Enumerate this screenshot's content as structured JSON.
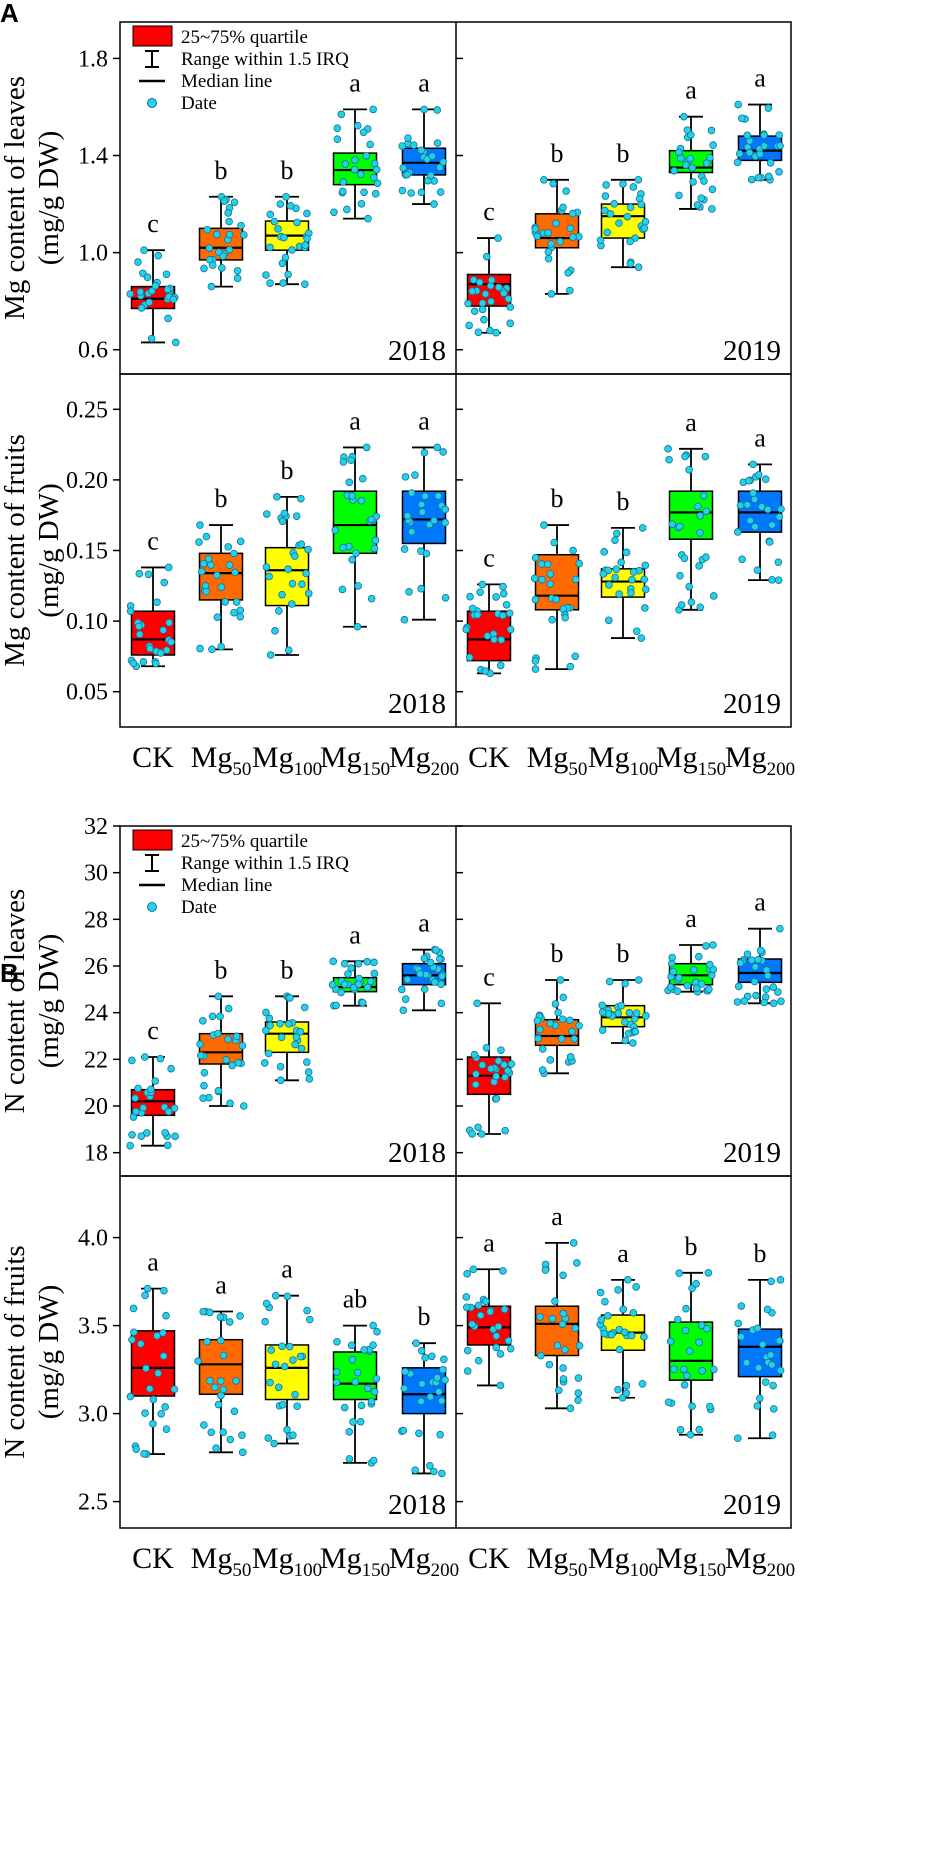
{
  "panels": [
    {
      "letter": "A"
    },
    {
      "letter": "B"
    }
  ],
  "legend": {
    "items": [
      {
        "label": "25~75% quartile",
        "kind": "box",
        "color": "#ff0000"
      },
      {
        "label": "Range within 1.5 IRQ",
        "kind": "whisker"
      },
      {
        "label": "Median line",
        "kind": "line"
      },
      {
        "label": "Date",
        "kind": "dot",
        "color": "#22d3e6"
      }
    ]
  },
  "categories": [
    {
      "main": "CK",
      "sub": ""
    },
    {
      "main": "Mg",
      "sub": "50"
    },
    {
      "main": "Mg",
      "sub": "100"
    },
    {
      "main": "Mg",
      "sub": "150"
    },
    {
      "main": "Mg",
      "sub": "200"
    }
  ],
  "colors": {
    "CK": "#ff0000",
    "Mg50": "#ff6a00",
    "Mg100": "#ffff00",
    "Mg150": "#00ff00",
    "Mg200": "#0077ff",
    "points": "#22d3e6",
    "points_edge": "#1a6f9a"
  },
  "chart_data": [
    {
      "type": "box",
      "panel": "A",
      "ylabel_line1": "Mg content of leaves",
      "ylabel_line2": "(mg/g DW)",
      "ylim": [
        0.5,
        1.95
      ],
      "yticks": [
        0.6,
        1.0,
        1.4,
        1.8
      ],
      "ytick_labels": [
        "0.6",
        "1.0",
        "1.4",
        "1.8"
      ],
      "show_legend": true,
      "show_xlabels": false,
      "subplots": [
        {
          "year": "2018",
          "boxes": [
            {
              "category": "CK",
              "min": 0.63,
              "q1": 0.77,
              "median": 0.81,
              "q3": 0.86,
              "max": 1.01,
              "letter": "c"
            },
            {
              "category": "Mg50",
              "min": 0.86,
              "q1": 0.97,
              "median": 1.02,
              "q3": 1.1,
              "max": 1.23,
              "letter": "b"
            },
            {
              "category": "Mg100",
              "min": 0.87,
              "q1": 1.01,
              "median": 1.07,
              "q3": 1.13,
              "max": 1.23,
              "letter": "b"
            },
            {
              "category": "Mg150",
              "min": 1.14,
              "q1": 1.28,
              "median": 1.34,
              "q3": 1.41,
              "max": 1.59,
              "letter": "a"
            },
            {
              "category": "Mg200",
              "min": 1.2,
              "q1": 1.32,
              "median": 1.37,
              "q3": 1.43,
              "max": 1.59,
              "letter": "a"
            }
          ]
        },
        {
          "year": "2019",
          "boxes": [
            {
              "category": "CK",
              "min": 0.67,
              "q1": 0.78,
              "median": 0.87,
              "q3": 0.91,
              "max": 1.06,
              "letter": "c"
            },
            {
              "category": "Mg50",
              "min": 0.83,
              "q1": 1.02,
              "median": 1.06,
              "q3": 1.16,
              "max": 1.3,
              "letter": "b"
            },
            {
              "category": "Mg100",
              "min": 0.94,
              "q1": 1.06,
              "median": 1.15,
              "q3": 1.2,
              "max": 1.3,
              "letter": "b"
            },
            {
              "category": "Mg150",
              "min": 1.18,
              "q1": 1.33,
              "median": 1.35,
              "q3": 1.42,
              "max": 1.56,
              "letter": "a"
            },
            {
              "category": "Mg200",
              "min": 1.3,
              "q1": 1.38,
              "median": 1.42,
              "q3": 1.48,
              "max": 1.61,
              "letter": "a"
            }
          ]
        }
      ]
    },
    {
      "type": "box",
      "panel": "A",
      "ylabel_line1": "Mg content of fruits",
      "ylabel_line2": "(mg/g DW)",
      "ylim": [
        0.025,
        0.275
      ],
      "yticks": [
        0.05,
        0.1,
        0.15,
        0.2,
        0.25
      ],
      "ytick_labels": [
        "0.05",
        "0.10",
        "0.15",
        "0.20",
        "0.25"
      ],
      "show_legend": false,
      "show_xlabels": true,
      "subplots": [
        {
          "year": "2018",
          "boxes": [
            {
              "category": "CK",
              "min": 0.068,
              "q1": 0.076,
              "median": 0.087,
              "q3": 0.107,
              "max": 0.138,
              "letter": "c"
            },
            {
              "category": "Mg50",
              "min": 0.08,
              "q1": 0.115,
              "median": 0.134,
              "q3": 0.148,
              "max": 0.168,
              "letter": "b"
            },
            {
              "category": "Mg100",
              "min": 0.076,
              "q1": 0.111,
              "median": 0.136,
              "q3": 0.152,
              "max": 0.188,
              "letter": "b"
            },
            {
              "category": "Mg150",
              "min": 0.096,
              "q1": 0.148,
              "median": 0.168,
              "q3": 0.192,
              "max": 0.223,
              "letter": "a"
            },
            {
              "category": "Mg200",
              "min": 0.101,
              "q1": 0.155,
              "median": 0.172,
              "q3": 0.192,
              "max": 0.223,
              "letter": "a"
            }
          ]
        },
        {
          "year": "2019",
          "boxes": [
            {
              "category": "CK",
              "min": 0.063,
              "q1": 0.072,
              "median": 0.087,
              "q3": 0.107,
              "max": 0.126,
              "letter": "c"
            },
            {
              "category": "Mg50",
              "min": 0.066,
              "q1": 0.108,
              "median": 0.118,
              "q3": 0.147,
              "max": 0.168,
              "letter": "b"
            },
            {
              "category": "Mg100",
              "min": 0.088,
              "q1": 0.117,
              "median": 0.128,
              "q3": 0.137,
              "max": 0.166,
              "letter": "b"
            },
            {
              "category": "Mg150",
              "min": 0.108,
              "q1": 0.158,
              "median": 0.177,
              "q3": 0.192,
              "max": 0.222,
              "letter": "a"
            },
            {
              "category": "Mg200",
              "min": 0.129,
              "q1": 0.163,
              "median": 0.177,
              "q3": 0.192,
              "max": 0.211,
              "letter": "a"
            }
          ]
        }
      ]
    },
    {
      "type": "box",
      "panel": "B",
      "ylabel_line1": "N content of leaves",
      "ylabel_line2": "(mg/g DW)",
      "ylim": [
        17,
        32
      ],
      "yticks": [
        18,
        20,
        22,
        24,
        26,
        28,
        30,
        32
      ],
      "ytick_labels": [
        "18",
        "20",
        "22",
        "24",
        "26",
        "28",
        "30",
        "32"
      ],
      "show_legend": true,
      "show_xlabels": false,
      "subplots": [
        {
          "year": "2018",
          "boxes": [
            {
              "category": "CK",
              "min": 18.3,
              "q1": 19.6,
              "median": 20.2,
              "q3": 20.7,
              "max": 22.1,
              "letter": "c"
            },
            {
              "category": "Mg50",
              "min": 20.0,
              "q1": 21.8,
              "median": 22.3,
              "q3": 23.1,
              "max": 24.7,
              "letter": "b"
            },
            {
              "category": "Mg100",
              "min": 21.1,
              "q1": 22.3,
              "median": 23.1,
              "q3": 23.6,
              "max": 24.7,
              "letter": "b"
            },
            {
              "category": "Mg150",
              "min": 24.3,
              "q1": 24.9,
              "median": 25.1,
              "q3": 25.5,
              "max": 26.2,
              "letter": "a"
            },
            {
              "category": "Mg200",
              "min": 24.1,
              "q1": 25.2,
              "median": 25.6,
              "q3": 26.1,
              "max": 26.7,
              "letter": "a"
            }
          ]
        },
        {
          "year": "2019",
          "boxes": [
            {
              "category": "CK",
              "min": 18.8,
              "q1": 20.5,
              "median": 21.3,
              "q3": 22.1,
              "max": 24.4,
              "letter": "c"
            },
            {
              "category": "Mg50",
              "min": 21.4,
              "q1": 22.6,
              "median": 23.0,
              "q3": 23.7,
              "max": 25.4,
              "letter": "b"
            },
            {
              "category": "Mg100",
              "min": 22.7,
              "q1": 23.4,
              "median": 23.8,
              "q3": 24.3,
              "max": 25.4,
              "letter": "b"
            },
            {
              "category": "Mg150",
              "min": 24.9,
              "q1": 25.2,
              "median": 25.6,
              "q3": 26.1,
              "max": 26.9,
              "letter": "a"
            },
            {
              "category": "Mg200",
              "min": 24.4,
              "q1": 25.3,
              "median": 25.7,
              "q3": 26.3,
              "max": 27.6,
              "letter": "a"
            }
          ]
        }
      ]
    },
    {
      "type": "box",
      "panel": "B",
      "ylabel_line1": "N content of fruits",
      "ylabel_line2": "(mg/g DW)",
      "ylim": [
        2.35,
        4.35
      ],
      "yticks": [
        2.5,
        3.0,
        3.5,
        4.0
      ],
      "ytick_labels": [
        "2.5",
        "3.0",
        "3.5",
        "4.0"
      ],
      "show_legend": false,
      "show_xlabels": true,
      "subplots": [
        {
          "year": "2018",
          "boxes": [
            {
              "category": "CK",
              "min": 2.77,
              "q1": 3.1,
              "median": 3.26,
              "q3": 3.47,
              "max": 3.71,
              "letter": "a"
            },
            {
              "category": "Mg50",
              "min": 2.78,
              "q1": 3.11,
              "median": 3.28,
              "q3": 3.42,
              "max": 3.58,
              "letter": "a"
            },
            {
              "category": "Mg100",
              "min": 2.83,
              "q1": 3.08,
              "median": 3.26,
              "q3": 3.39,
              "max": 3.67,
              "letter": "a"
            },
            {
              "category": "Mg150",
              "min": 2.72,
              "q1": 3.08,
              "median": 3.17,
              "q3": 3.35,
              "max": 3.5,
              "letter": "ab"
            },
            {
              "category": "Mg200",
              "min": 2.66,
              "q1": 3.0,
              "median": 3.11,
              "q3": 3.26,
              "max": 3.4,
              "letter": "b"
            }
          ]
        },
        {
          "year": "2019",
          "boxes": [
            {
              "category": "CK",
              "min": 3.16,
              "q1": 3.39,
              "median": 3.49,
              "q3": 3.61,
              "max": 3.82,
              "letter": "a"
            },
            {
              "category": "Mg50",
              "min": 3.03,
              "q1": 3.33,
              "median": 3.51,
              "q3": 3.61,
              "max": 3.97,
              "letter": "a"
            },
            {
              "category": "Mg100",
              "min": 3.09,
              "q1": 3.36,
              "median": 3.46,
              "q3": 3.56,
              "max": 3.76,
              "letter": "a"
            },
            {
              "category": "Mg150",
              "min": 2.88,
              "q1": 3.19,
              "median": 3.3,
              "q3": 3.52,
              "max": 3.8,
              "letter": "b"
            },
            {
              "category": "Mg200",
              "min": 2.86,
              "q1": 3.21,
              "median": 3.38,
              "q3": 3.48,
              "max": 3.76,
              "letter": "b"
            }
          ]
        }
      ]
    }
  ]
}
